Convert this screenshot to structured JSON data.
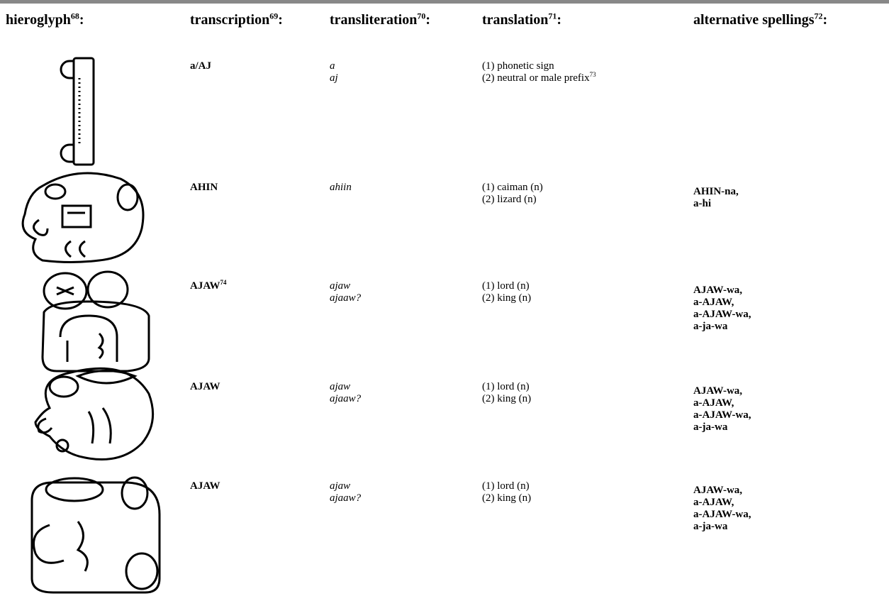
{
  "header": [
    {
      "label": "hieroglyph",
      "note": "68",
      "suffix": ":"
    },
    {
      "label": "transcription",
      "note": "69",
      "suffix": ":"
    },
    {
      "label": "transliteration",
      "note": "70",
      "suffix": ":"
    },
    {
      "label": "translation",
      "note": "71",
      "suffix": ":"
    },
    {
      "label": "alternative spellings",
      "note": "72",
      "suffix": ":"
    }
  ],
  "rows": [
    {
      "transcription": {
        "text": "a/AJ"
      },
      "transliteration": [
        "a",
        "aj"
      ],
      "translation": [
        {
          "text": "(1) phonetic sign"
        },
        {
          "text": "(2) neutral or male prefix",
          "note": "73"
        }
      ],
      "alternatives": []
    },
    {
      "transcription": {
        "text": "AHIN"
      },
      "transliteration": [
        "ahiin"
      ],
      "translation": [
        {
          "text": "(1) caiman (n)"
        },
        {
          "text": "(2) lizard (n)"
        }
      ],
      "alternatives": [
        "AHIN-na,",
        "a-hi"
      ]
    },
    {
      "transcription": {
        "text": "AJAW",
        "note": "74"
      },
      "transliteration": [
        "ajaw",
        "ajaaw?"
      ],
      "translation": [
        {
          "text": "(1) lord (n)"
        },
        {
          "text": "(2) king (n)"
        }
      ],
      "alternatives": [
        "AJAW-wa,",
        "a-AJAW,",
        "a-AJAW-wa,",
        "a-ja-wa"
      ]
    },
    {
      "transcription": {
        "text": "AJAW"
      },
      "transliteration": [
        "ajaw",
        "ajaaw?"
      ],
      "translation": [
        {
          "text": "(1) lord (n)"
        },
        {
          "text": "(2) king (n)"
        }
      ],
      "alternatives": [
        "AJAW-wa,",
        "a-AJAW,",
        "a-AJAW-wa,",
        "a-ja-wa"
      ]
    },
    {
      "transcription": {
        "text": "AJAW"
      },
      "transliteration": [
        "ajaw",
        "ajaaw?"
      ],
      "translation": [
        {
          "text": "(1) lord (n)"
        },
        {
          "text": "(2) king (n)"
        }
      ],
      "alternatives": [
        "AJAW-wa,",
        "a-AJAW,",
        "a-AJAW-wa,",
        "a-ja-wa"
      ]
    }
  ]
}
